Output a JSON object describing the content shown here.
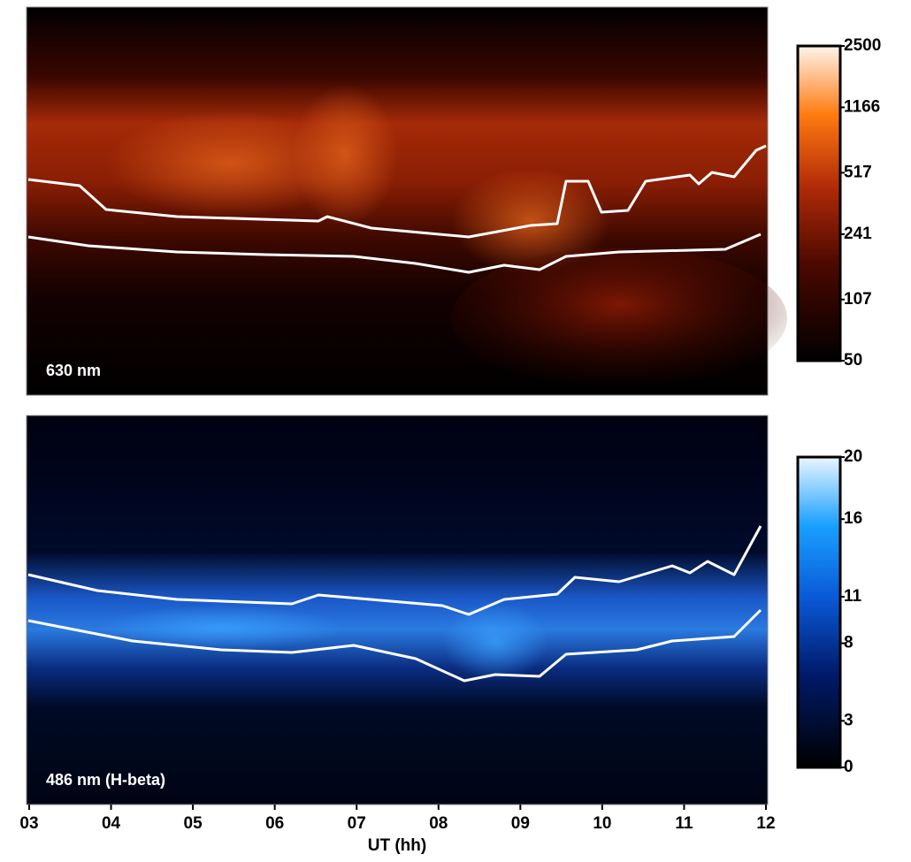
{
  "panels": [
    {
      "label": "630 nm",
      "colorbar": {
        "scale": "log",
        "range": [
          50,
          2500
        ],
        "ticks": [
          2500,
          1166,
          517,
          241,
          107,
          50
        ]
      }
    },
    {
      "label": "486 nm (H-beta)",
      "colorbar": {
        "scale": "linear",
        "range": [
          0,
          20
        ],
        "ticks": [
          20,
          16,
          11,
          8,
          3,
          0
        ]
      }
    }
  ],
  "x_axis": {
    "label": "UT (hh)",
    "range": [
      3,
      12
    ],
    "ticks": [
      {
        "value": 3,
        "label": "03"
      },
      {
        "value": 4,
        "label": "04"
      },
      {
        "value": 5,
        "label": "05"
      },
      {
        "value": 6,
        "label": "06"
      },
      {
        "value": 7,
        "label": "07"
      },
      {
        "value": 8,
        "label": "08"
      },
      {
        "value": 9,
        "label": "09"
      },
      {
        "value": 10,
        "label": "10"
      },
      {
        "value": 11,
        "label": "11"
      },
      {
        "value": 12,
        "label": "12"
      }
    ]
  }
}
